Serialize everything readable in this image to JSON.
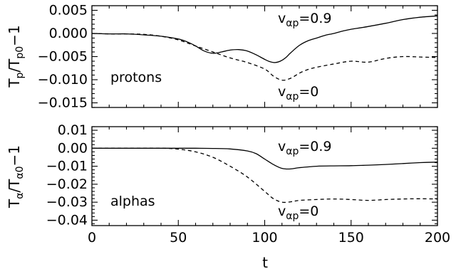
{
  "chart_data": [
    {
      "type": "line",
      "ylabel": "T_p/T_p0−1",
      "xlim": [
        0,
        200
      ],
      "ylim": [
        -0.016,
        0.006
      ],
      "yticks": [
        0.005,
        0.0,
        -0.005,
        -0.01,
        -0.015
      ],
      "ytick_labels": [
        "0.005",
        "0.000",
        "−0.005",
        "−0.010",
        "−0.015"
      ],
      "xticks": [
        0,
        50,
        100,
        150,
        200
      ],
      "annotations": [
        {
          "text": "protons"
        },
        {
          "text": "v_αp=0.9"
        },
        {
          "text": "v_αp=0"
        }
      ],
      "series": [
        {
          "line_style": "solid",
          "x": [
            0,
            10,
            20,
            30,
            40,
            50,
            55,
            60,
            65,
            70,
            75,
            80,
            85,
            90,
            95,
            100,
            103,
            106,
            109,
            112,
            115,
            120,
            125,
            130,
            135,
            140,
            145,
            150,
            160,
            170,
            180,
            190,
            200
          ],
          "y": [
            0.0,
            -0.0001,
            -0.0001,
            -0.0003,
            -0.0006,
            -0.0012,
            -0.0018,
            -0.0027,
            -0.0038,
            -0.0043,
            -0.004,
            -0.0036,
            -0.0035,
            -0.0038,
            -0.0046,
            -0.0056,
            -0.0061,
            -0.0063,
            -0.006,
            -0.0053,
            -0.0042,
            -0.0026,
            -0.0016,
            -0.001,
            -0.0004,
            0.0,
            0.0005,
            0.0009,
            0.0015,
            0.0022,
            0.003,
            0.0035,
            0.0038
          ]
        },
        {
          "line_style": "dashed",
          "x": [
            0,
            10,
            20,
            30,
            40,
            50,
            60,
            70,
            80,
            90,
            100,
            105,
            110,
            115,
            120,
            125,
            130,
            140,
            150,
            160,
            170,
            180,
            190,
            200
          ],
          "y": [
            0.0,
            -0.0001,
            -0.0001,
            -0.0002,
            -0.0006,
            -0.0014,
            -0.0027,
            -0.004,
            -0.0053,
            -0.0063,
            -0.0077,
            -0.0092,
            -0.0101,
            -0.0097,
            -0.0086,
            -0.0078,
            -0.0073,
            -0.0066,
            -0.006,
            -0.0062,
            -0.0054,
            -0.005,
            -0.0051,
            -0.0052
          ]
        }
      ]
    },
    {
      "type": "line",
      "ylabel": "T_α/T_α0−1",
      "xlabel": "t",
      "xlim": [
        0,
        200
      ],
      "ylim": [
        -0.043,
        0.012
      ],
      "yticks": [
        0.01,
        0.0,
        -0.01,
        -0.02,
        -0.03,
        -0.04
      ],
      "ytick_labels": [
        "0.01",
        "0.00",
        "−0.01",
        "−0.02",
        "−0.03",
        "−0.04"
      ],
      "xticks": [
        0,
        50,
        100,
        150,
        200
      ],
      "xtick_labels": [
        "0",
        "50",
        "100",
        "150",
        "200"
      ],
      "annotations": [
        {
          "text": "alphas"
        },
        {
          "text": "v_αp=0.9"
        },
        {
          "text": "v_αp=0"
        }
      ],
      "series": [
        {
          "line_style": "solid",
          "x": [
            0,
            20,
            40,
            60,
            70,
            80,
            90,
            95,
            100,
            105,
            110,
            115,
            120,
            130,
            140,
            150,
            160,
            170,
            180,
            190,
            200
          ],
          "y": [
            0.0,
            0.0,
            0.0,
            0.0,
            -0.0001,
            -0.0004,
            -0.0015,
            -0.003,
            -0.006,
            -0.009,
            -0.0112,
            -0.0115,
            -0.0108,
            -0.01,
            -0.0098,
            -0.0097,
            -0.0094,
            -0.009,
            -0.0085,
            -0.008,
            -0.0077
          ]
        },
        {
          "line_style": "dashed",
          "x": [
            0,
            20,
            40,
            50,
            60,
            70,
            80,
            90,
            100,
            105,
            110,
            115,
            120,
            130,
            140,
            150,
            160,
            170,
            180,
            190,
            200
          ],
          "y": [
            0.0,
            0.0,
            0.0,
            -0.0005,
            -0.002,
            -0.005,
            -0.01,
            -0.016,
            -0.024,
            -0.028,
            -0.03,
            -0.0298,
            -0.029,
            -0.0285,
            -0.0282,
            -0.0285,
            -0.029,
            -0.0285,
            -0.0282,
            -0.0281,
            -0.0282
          ]
        }
      ]
    }
  ]
}
